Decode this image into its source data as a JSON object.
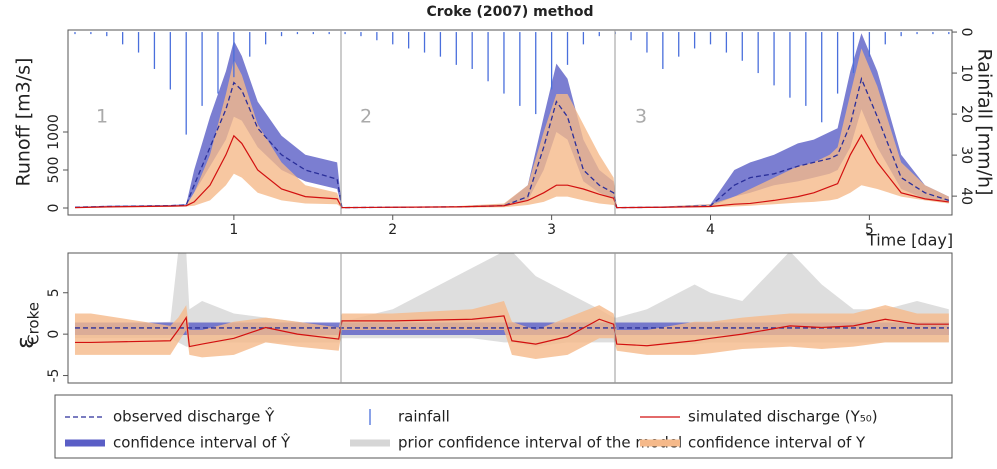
{
  "chart_data": [
    {
      "type": "line",
      "title": "Croke (2007) method",
      "ylabel": "Runoff [m3/s]",
      "y2label": "Rainfall [mm/h]",
      "xlabel": "Time [day]",
      "panel_labels": [
        "1",
        "2",
        "3"
      ],
      "xlim": [
        -0.044,
        5.52
      ],
      "xticks": [
        1,
        2,
        3,
        4,
        5
      ],
      "ylim": [
        -92,
        2342
      ],
      "yticks": [
        0,
        500,
        1000
      ],
      "y2lim": [
        44.6,
        -0.5
      ],
      "y2ticks": [
        0,
        10,
        20,
        30,
        40
      ],
      "x": [
        0,
        0.2,
        0.4,
        0.6,
        0.7,
        0.75,
        0.85,
        0.95,
        1.0,
        1.05,
        1.15,
        1.3,
        1.45,
        1.65,
        1.68,
        2.0,
        2.4,
        2.7,
        2.85,
        2.95,
        3.03,
        3.1,
        3.2,
        3.3,
        3.39,
        3.41,
        3.7,
        4.0,
        4.15,
        4.25,
        4.4,
        4.55,
        4.65,
        4.75,
        4.8,
        4.88,
        4.95,
        5.05,
        5.2,
        5.35,
        5.5
      ],
      "series": [
        {
          "name": "confidence interval of Ŷ",
          "kind": "band",
          "color": "#5a5ec6",
          "upper": [
            15,
            30,
            35,
            40,
            50,
            500,
            1200,
            1800,
            2200,
            2000,
            1400,
            950,
            700,
            600,
            10,
            15,
            20,
            50,
            300,
            1200,
            1900,
            1700,
            900,
            500,
            350,
            10,
            20,
            50,
            500,
            600,
            700,
            850,
            900,
            1000,
            1050,
            1800,
            2300,
            1800,
            700,
            300,
            150
          ],
          "lower": [
            5,
            10,
            15,
            20,
            30,
            200,
            550,
            900,
            1200,
            1150,
            800,
            500,
            350,
            250,
            0,
            5,
            10,
            20,
            100,
            500,
            1000,
            900,
            350,
            200,
            120,
            0,
            5,
            20,
            150,
            200,
            300,
            350,
            400,
            450,
            500,
            800,
            1300,
            800,
            250,
            120,
            70
          ]
        },
        {
          "name": "confidence interval of Y",
          "kind": "band",
          "color": "#f5b98a",
          "upper": [
            10,
            25,
            30,
            35,
            40,
            200,
            700,
            1500,
            1950,
            1750,
            1100,
            600,
            300,
            200,
            10,
            15,
            25,
            60,
            300,
            1000,
            1500,
            1500,
            1100,
            700,
            400,
            10,
            20,
            50,
            150,
            250,
            400,
            550,
            600,
            700,
            800,
            1500,
            2100,
            1600,
            600,
            300,
            150
          ],
          "lower": [
            0,
            5,
            10,
            15,
            20,
            30,
            100,
            300,
            450,
            400,
            200,
            100,
            60,
            50,
            0,
            5,
            5,
            10,
            40,
            80,
            150,
            150,
            100,
            60,
            40,
            0,
            5,
            10,
            20,
            30,
            50,
            70,
            80,
            100,
            120,
            200,
            300,
            250,
            150,
            100,
            60
          ]
        },
        {
          "name": "observed discharge Ŷ",
          "kind": "line",
          "dash": true,
          "color": "#2a2f9a",
          "values": [
            10,
            20,
            25,
            30,
            40,
            300,
            800,
            1300,
            1650,
            1550,
            1050,
            700,
            500,
            380,
            5,
            10,
            15,
            30,
            150,
            800,
            1400,
            1200,
            500,
            300,
            200,
            5,
            10,
            30,
            300,
            400,
            450,
            550,
            600,
            650,
            700,
            1100,
            1700,
            1200,
            400,
            200,
            100
          ]
        },
        {
          "name": "simulated discharge (Y₅₀)",
          "kind": "line",
          "color": "#d21010",
          "values": [
            5,
            15,
            20,
            25,
            30,
            80,
            300,
            700,
            950,
            850,
            500,
            250,
            150,
            120,
            5,
            10,
            15,
            30,
            100,
            200,
            300,
            300,
            250,
            180,
            130,
            5,
            10,
            20,
            50,
            60,
            100,
            150,
            200,
            280,
            320,
            700,
            960,
            600,
            200,
            120,
            80
          ]
        },
        {
          "name": "rainfall",
          "kind": "bar",
          "axis": "y2",
          "color": "#4a6fdc",
          "x": [
            0,
            0.1,
            0.2,
            0.3,
            0.4,
            0.5,
            0.6,
            0.7,
            0.8,
            0.9,
            1.0,
            1.1,
            1.2,
            1.3,
            1.4,
            1.5,
            1.6,
            1.7,
            1.8,
            1.9,
            2.0,
            2.1,
            2.2,
            2.3,
            2.4,
            2.5,
            2.6,
            2.7,
            2.8,
            2.9,
            3.0,
            3.1,
            3.2,
            3.3,
            3.4,
            3.5,
            3.6,
            3.7,
            3.8,
            3.9,
            4.0,
            4.1,
            4.2,
            4.3,
            4.4,
            4.5,
            4.6,
            4.7,
            4.8,
            4.9,
            5.0,
            5.1,
            5.2,
            5.3,
            5.4,
            5.5
          ],
          "values": [
            0.5,
            0.5,
            1,
            3,
            5,
            9,
            14,
            25,
            18,
            15,
            11,
            6,
            3,
            1,
            0.5,
            0.5,
            0.5,
            0.5,
            1,
            2,
            3,
            4,
            5,
            6,
            8,
            9,
            12,
            15,
            18,
            20,
            14,
            8,
            3,
            1,
            0.5,
            2,
            5,
            9,
            6,
            4,
            3,
            5,
            7,
            10,
            13,
            16,
            18,
            22,
            15,
            10,
            6,
            3,
            1,
            0.5,
            0.5,
            0.5
          ]
        }
      ]
    },
    {
      "type": "line",
      "ylabel": "ε",
      "ylabel_sub": "Croke",
      "xlim": [
        -0.044,
        5.52
      ],
      "ylim": [
        -5.9,
        9.8
      ],
      "yticks": [
        -5,
        0,
        5
      ],
      "x": [
        0,
        0.1,
        0.6,
        0.65,
        0.7,
        0.72,
        0.8,
        1.0,
        1.2,
        1.4,
        1.66,
        1.68,
        2.0,
        2.5,
        2.7,
        2.75,
        2.9,
        3.1,
        3.3,
        3.39,
        3.41,
        3.6,
        3.9,
        4.0,
        4.2,
        4.5,
        4.7,
        4.9,
        5.1,
        5.3,
        5.5
      ],
      "series": [
        {
          "name": "prior confidence interval of the model",
          "kind": "band",
          "color": "#d6d6d6",
          "upper": [
            1,
            1,
            1.5,
            10,
            10,
            3,
            4,
            2.5,
            2,
            1.5,
            1,
            1.5,
            3,
            8,
            10,
            10,
            7,
            5,
            3,
            2,
            2,
            3,
            6,
            5,
            4,
            10,
            6,
            3,
            3,
            4,
            3
          ],
          "lower": [
            -0.5,
            -0.5,
            -0.5,
            -1,
            -1.5,
            -1.5,
            -1,
            -1,
            -1,
            -1,
            -1,
            -0.5,
            -0.5,
            -0.5,
            -1,
            -1,
            -1.5,
            -1,
            -1,
            -1,
            -1,
            -1.2,
            -1.2,
            -1,
            -1,
            -1,
            -1,
            -1,
            -1,
            -1,
            -1
          ]
        },
        {
          "kind": "band",
          "color": "#5a5ec6",
          "x": [
            0,
            5.5
          ],
          "upper": [
            1.4,
            1.4
          ],
          "lower": [
            -0.1,
            -0.1
          ]
        },
        {
          "kind": "band",
          "color": "#f5b98a",
          "upper": [
            2.5,
            2.5,
            1,
            2,
            3.5,
            0.5,
            0.5,
            1.5,
            2,
            1.5,
            0.8,
            2.5,
            2.5,
            3,
            4,
            1.5,
            0.5,
            2,
            3.5,
            2.5,
            0.5,
            0.5,
            1.5,
            1.5,
            2,
            2.5,
            2.5,
            2.5,
            3.5,
            2.5,
            2.5
          ],
          "lower": [
            -2.5,
            -2.5,
            -2.5,
            -1,
            0.5,
            -2.5,
            -2.8,
            -2.5,
            -1,
            -1.5,
            -2,
            0.5,
            0.5,
            0.5,
            0.5,
            -2.5,
            -3,
            -2.5,
            -0.5,
            -0.5,
            -2,
            -2.5,
            -2.5,
            -2.3,
            -1.8,
            -1.5,
            -1.8,
            -1.5,
            -1,
            -1,
            -1
          ]
        },
        {
          "kind": "line",
          "dash": true,
          "color": "#2a2f9a",
          "x": [
            0,
            5.5
          ],
          "values": [
            0.75,
            0.75
          ]
        },
        {
          "kind": "line",
          "color": "#d21010",
          "values": [
            -1,
            -1,
            -0.8,
            0.5,
            2,
            -1.5,
            -1.2,
            -0.5,
            0.8,
            0,
            -0.6,
            1.6,
            1.6,
            1.8,
            2.2,
            -0.8,
            -1.2,
            -0.3,
            1.8,
            1.2,
            -1.2,
            -1.4,
            -0.8,
            -0.5,
            0,
            1,
            0.8,
            1,
            1.8,
            1.2,
            1.2
          ]
        }
      ]
    }
  ]
}
